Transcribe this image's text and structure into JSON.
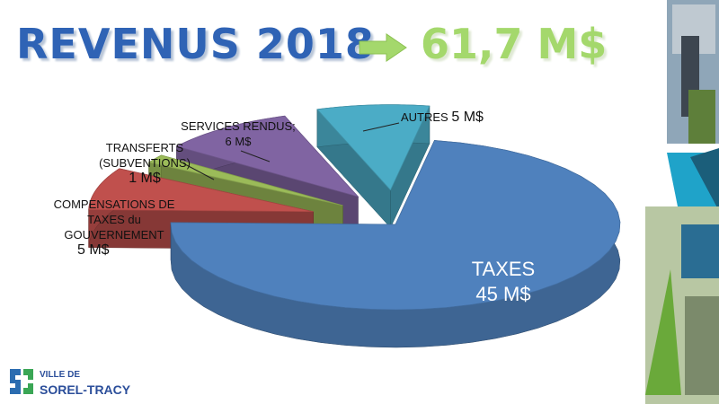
{
  "slide": {
    "title_main": "REVENUS 2018",
    "title_total": "61,7 M$",
    "logo_line1": "VILLE DE",
    "logo_line2": "SOREL-TRACY"
  },
  "labels": {
    "taxes_name": "TAXES",
    "taxes_value": "45 M$",
    "autres_name": "AUTRES",
    "autres_value": "5 M$",
    "services_name": "SERVICES RENDUS;",
    "services_value": "6 M$",
    "transferts_name1": "TRANSFERTS",
    "transferts_name2": "(SUBVENTIONS)",
    "transferts_value": "1 M$",
    "compensations_name1": "COMPENSATIONS DE",
    "compensations_name2": "TAXES du",
    "compensations_name3": "GOUVERNEMENT",
    "compensations_value": "5 M$"
  },
  "colors": {
    "taxes": "#4f81bd",
    "compensations": "#c0504d",
    "transferts": "#9bbb59",
    "services": "#8064a2",
    "autres": "#4bacc6",
    "title_blue": "#2f63b5",
    "title_green": "#a4d86c"
  },
  "icons": {
    "arrow": "right-arrow-icon",
    "logo": "city-logo-icon"
  },
  "chart_data": {
    "type": "pie",
    "title": "REVENUS 2018",
    "total": "61,7 M$",
    "unit": "M$",
    "exploded": true,
    "three_d": true,
    "slices": [
      {
        "name": "TAXES",
        "value": 45,
        "color": "#4f81bd"
      },
      {
        "name": "COMPENSATIONS DE TAXES du GOUVERNEMENT",
        "value": 5,
        "color": "#c0504d"
      },
      {
        "name": "TRANSFERTS (SUBVENTIONS)",
        "value": 1,
        "color": "#9bbb59"
      },
      {
        "name": "SERVICES RENDUS;",
        "value": 6,
        "color": "#8064a2"
      },
      {
        "name": "AUTRES",
        "value": 5,
        "color": "#4bacc6"
      }
    ]
  }
}
